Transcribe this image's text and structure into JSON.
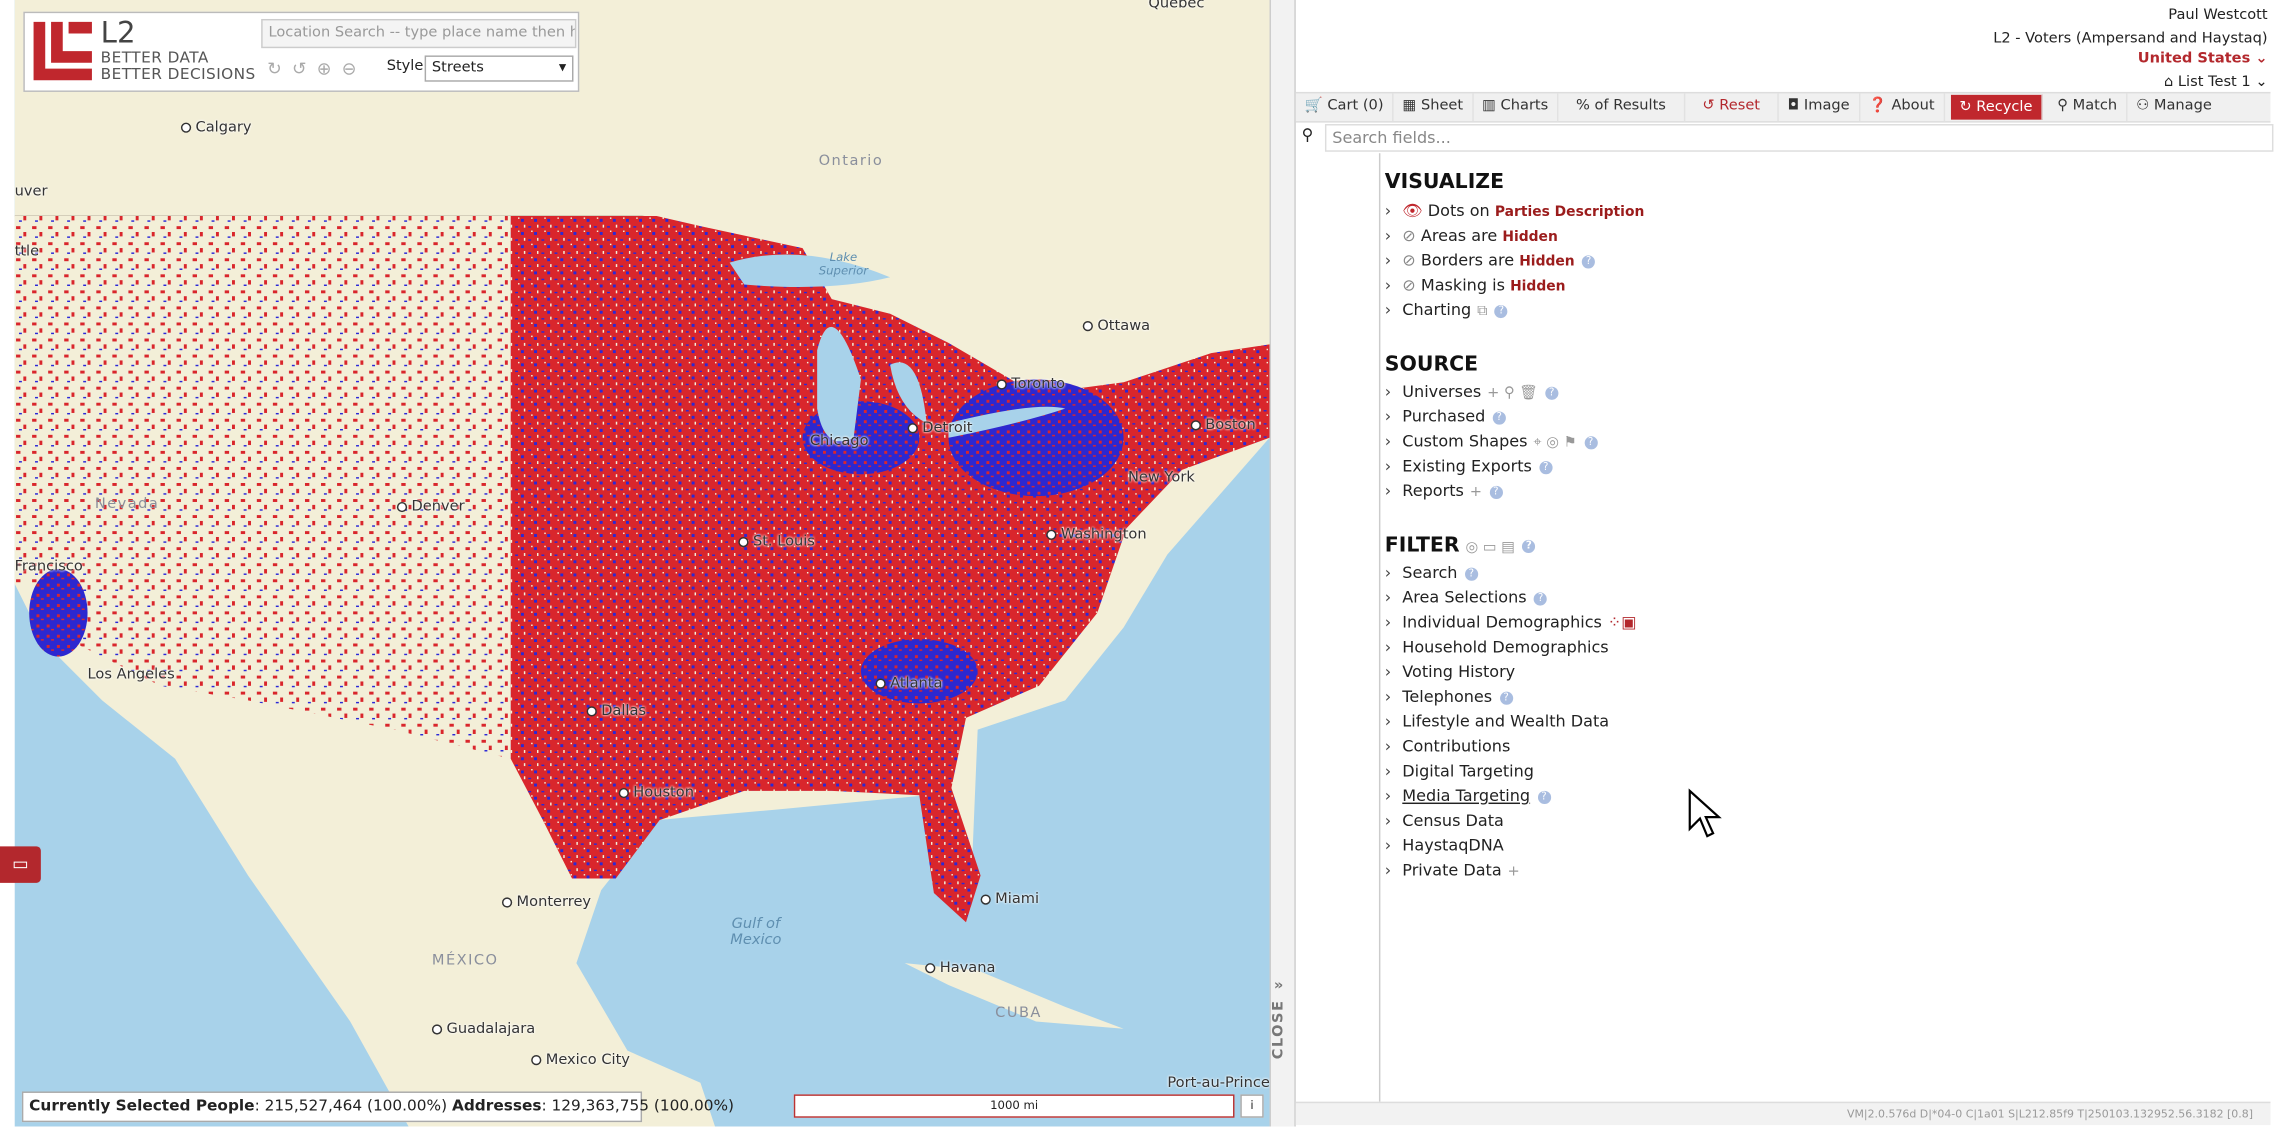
{
  "map": {
    "logo": {
      "name": "L2",
      "tagline_1": "BETTER DATA",
      "tagline_2": "BETTER DECISIONS"
    },
    "location_search_placeholder": "Location Search -- type place name then hit Ente",
    "style_label": "Style",
    "style_value": "Streets",
    "labels": [
      "Quebec",
      "Calgary",
      "Ontario",
      "uver",
      "ttle",
      "Ottawa",
      "Toronto",
      "Detroit",
      "Chicago",
      "Boston",
      "New York",
      "Denver",
      "Nevada",
      "Francisco",
      "Washington",
      "St. Louis",
      "Los Angeles",
      "Atlanta",
      "Dallas",
      "Houston",
      "Miami",
      "Monterrey",
      "MÉXICO",
      "Havana",
      "CUBA",
      "Guadalajara",
      "Mexico City",
      "Port-au-Prince",
      "Gulf of Mexico",
      "Lake Superior"
    ],
    "scale": "1000 mi",
    "status": {
      "people_label": "Currently Selected People",
      "people_value": ": 215,527,464 (100.00%)",
      "addresses_label": "Addresses",
      "addresses_value": ": 129,363,755 (100.00%)"
    },
    "close_tab": "CLOSE"
  },
  "panel": {
    "user": "Paul Westcott",
    "database": "L2 - Voters (Ampersand and Haystaq)",
    "state": "United States",
    "list": "List Test 1",
    "toolbar": [
      "Cart (0)",
      "Sheet",
      "Charts",
      "% of Results",
      "Reset",
      "Image",
      "About",
      "Recycle",
      "Match",
      "Manage"
    ],
    "search_placeholder": "Search fields...",
    "visualize": {
      "title": "VISUALIZE",
      "items": [
        {
          "label": "Dots",
          "connector": "on",
          "value": "Parties Description"
        },
        {
          "label": "Areas",
          "connector": "are",
          "value": "Hidden"
        },
        {
          "label": "Borders",
          "connector": "are",
          "value": "Hidden"
        },
        {
          "label": "Masking",
          "connector": "is",
          "value": "Hidden"
        },
        {
          "label": "Charting"
        }
      ]
    },
    "source": {
      "title": "SOURCE",
      "items": [
        "Universes",
        "Purchased",
        "Custom Shapes",
        "Existing Exports",
        "Reports"
      ]
    },
    "filter": {
      "title": "FILTER",
      "items": [
        "Search",
        "Area Selections",
        "Individual Demographics",
        "Household Demographics",
        "Voting History",
        "Telephones",
        "Lifestyle and Wealth Data",
        "Contributions",
        "Digital Targeting",
        "Media Targeting",
        "Census Data",
        "HaystaqDNA",
        "Private Data"
      ]
    },
    "version": "VM|2.0.576d D|*04-0 C|1a01 S|L212.85f9 T|250103.132952.56.3182 [0.8]"
  }
}
